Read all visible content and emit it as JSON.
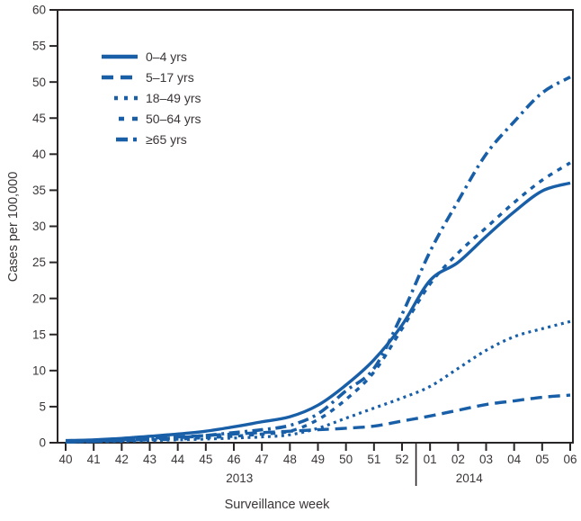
{
  "figure": {
    "y_axis_title": "Cases per 100,000",
    "x_axis_title": "Surveillance week",
    "accent_color": "#185fa8",
    "axis_color": "#2a2627",
    "text_color": "#3a3637"
  },
  "chart_data": {
    "type": "line",
    "title": "",
    "xlabel": "Surveillance week",
    "ylabel": "Cases per 100,000",
    "ylim": [
      0,
      60
    ],
    "y_tick_step": 5,
    "grid": false,
    "legend_position": "top-left-inside",
    "categories": [
      "40",
      "41",
      "42",
      "43",
      "44",
      "45",
      "46",
      "47",
      "48",
      "49",
      "50",
      "51",
      "52",
      "01",
      "02",
      "03",
      "04",
      "05",
      "06"
    ],
    "year_groups": [
      {
        "label": "2013",
        "center_index": 6.2
      },
      {
        "label": "2014",
        "center_index": 14.4
      }
    ],
    "year_divider_between": [
      "52",
      "01"
    ],
    "series": [
      {
        "name": "0–4 yrs",
        "line_style": "solid",
        "values": [
          0.3,
          0.4,
          0.6,
          0.9,
          1.2,
          1.6,
          2.2,
          2.9,
          3.6,
          5.2,
          8.0,
          11.5,
          16.3,
          22.5,
          25.0,
          28.6,
          32.0,
          34.9,
          36.0
        ]
      },
      {
        "name": "5–17 yrs",
        "line_style": "long-dash",
        "values": [
          0.2,
          0.3,
          0.4,
          0.6,
          0.8,
          1.0,
          1.2,
          1.4,
          1.6,
          1.8,
          2.0,
          2.3,
          3.0,
          3.7,
          4.5,
          5.3,
          5.8,
          6.3,
          6.6
        ]
      },
      {
        "name": "18–49 yrs",
        "line_style": "dot",
        "values": [
          0.1,
          0.15,
          0.2,
          0.3,
          0.4,
          0.5,
          0.65,
          0.8,
          1.1,
          2.0,
          3.4,
          4.8,
          6.2,
          7.8,
          10.3,
          12.8,
          14.7,
          15.8,
          16.8
        ]
      },
      {
        "name": "50–64 yrs",
        "line_style": "dash",
        "values": [
          0.1,
          0.2,
          0.3,
          0.4,
          0.5,
          0.7,
          0.9,
          1.2,
          1.6,
          3.2,
          6.0,
          9.8,
          15.8,
          22.0,
          26.3,
          29.8,
          33.3,
          36.4,
          38.8
        ]
      },
      {
        "name": "≥65 yrs",
        "line_style": "dash-dot",
        "values": [
          0.1,
          0.2,
          0.3,
          0.5,
          0.7,
          1.0,
          1.4,
          1.8,
          2.4,
          4.0,
          7.2,
          10.3,
          17.8,
          26.5,
          33.5,
          40.0,
          44.5,
          48.5,
          50.7
        ]
      }
    ]
  }
}
